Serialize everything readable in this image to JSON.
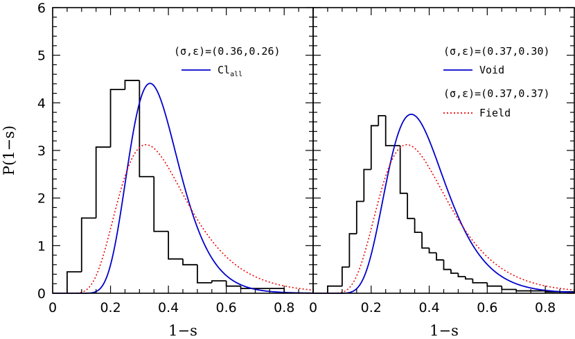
{
  "chart_data": {
    "type": "line",
    "shared": {
      "ylabel": "P(1−s)",
      "xlabel": "1−s",
      "xlim": [
        0,
        0.9
      ],
      "ylim": [
        0,
        6
      ],
      "xticks": [
        0,
        0.2,
        0.4,
        0.6,
        0.8
      ],
      "xtick_labels": [
        "0",
        "0.2",
        "0.4",
        "0.6",
        "0.8"
      ],
      "yticks": [
        0,
        1,
        2,
        3,
        4,
        5,
        6
      ],
      "ytick_labels": [
        "0",
        "1",
        "2",
        "3",
        "4",
        "5",
        "6"
      ]
    },
    "panels": [
      {
        "id": "left",
        "annotations": [
          {
            "text": "(σ,ε)=(0.36,0.26)"
          }
        ],
        "legend": [
          {
            "label": "Cl",
            "subscript": "all",
            "color": "#0000cc",
            "style": "solid"
          }
        ],
        "histogram": {
          "bin_edges": [
            0.05,
            0.1,
            0.15,
            0.2,
            0.25,
            0.3,
            0.35,
            0.4,
            0.45,
            0.5,
            0.55,
            0.6,
            0.65,
            0.7,
            0.75,
            0.8
          ],
          "values": [
            0.45,
            1.58,
            3.07,
            4.28,
            4.47,
            2.45,
            1.3,
            0.72,
            0.6,
            0.22,
            0.26,
            0.15,
            0.1,
            0.1,
            0.1
          ],
          "color": "#000000"
        },
        "series": [
          {
            "style": "solid",
            "color": "#0000cc",
            "sigma": 0.36,
            "epsilon": 0.26
          },
          {
            "style": "dotted",
            "color": "#ee0000",
            "sigma": 0.37,
            "epsilon": 0.37
          }
        ]
      },
      {
        "id": "right",
        "annotations": [
          {
            "text": "(σ,ε)=(0.37,0.30)"
          },
          {
            "text": "(σ,ε)=(0.37,0.37)"
          }
        ],
        "legend": [
          {
            "label": "Void",
            "color": "#0000cc",
            "style": "solid"
          },
          {
            "label": "Field",
            "color": "#ee0000",
            "style": "dotted"
          }
        ],
        "histogram": {
          "bin_edges": [
            0.05,
            0.1,
            0.125,
            0.15,
            0.175,
            0.2,
            0.225,
            0.25,
            0.3,
            0.325,
            0.35,
            0.375,
            0.4,
            0.425,
            0.45,
            0.475,
            0.5,
            0.525,
            0.55,
            0.6,
            0.65,
            0.7,
            0.8,
            0.9
          ],
          "values": [
            0.15,
            0.55,
            1.25,
            1.93,
            2.6,
            3.52,
            3.73,
            3.1,
            2.1,
            1.57,
            1.28,
            0.95,
            0.85,
            0.7,
            0.5,
            0.42,
            0.35,
            0.3,
            0.22,
            0.15,
            0.08,
            0.05,
            0.03
          ],
          "color": "#000000"
        },
        "series": [
          {
            "style": "solid",
            "color": "#0000cc",
            "sigma": 0.37,
            "epsilon": 0.3
          },
          {
            "style": "dotted",
            "color": "#ee0000",
            "sigma": 0.37,
            "epsilon": 0.37
          }
        ]
      }
    ]
  }
}
